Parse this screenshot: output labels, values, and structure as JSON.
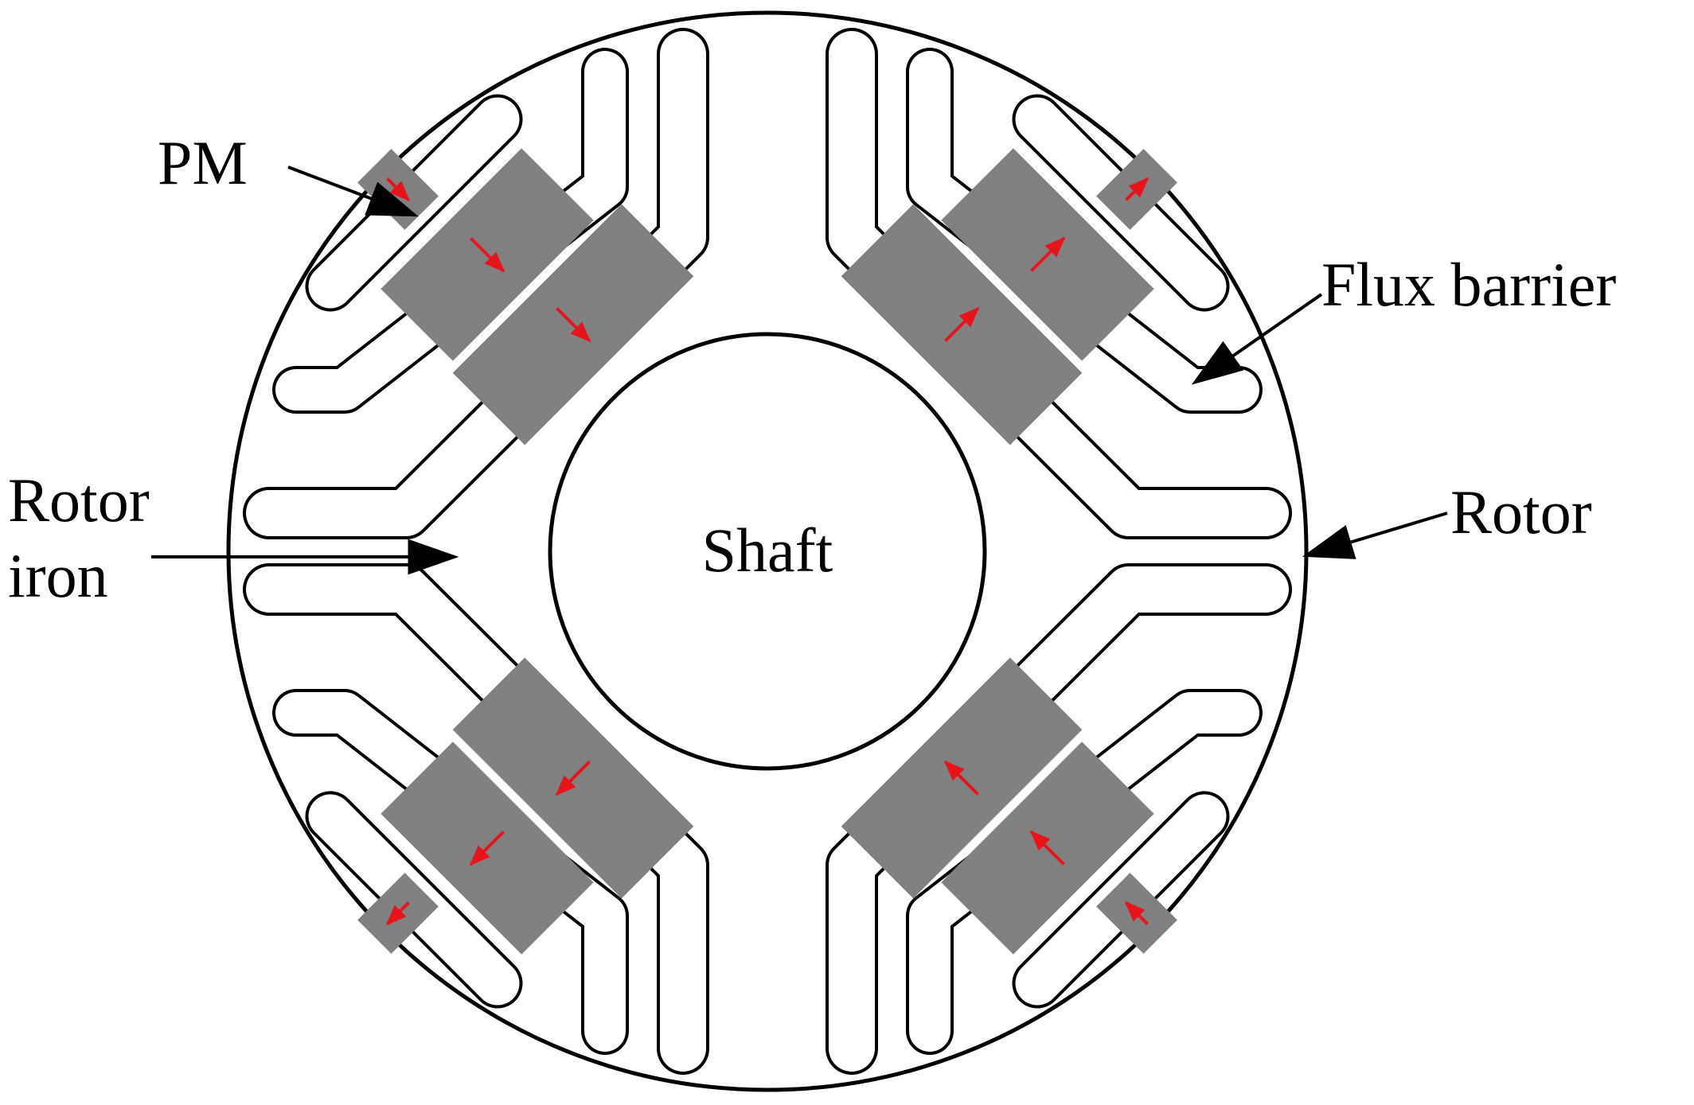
{
  "labels": {
    "pm": "PM",
    "flux_barrier": "Flux barrier",
    "rotor_iron_line1": "Rotor",
    "rotor_iron_line2": "iron",
    "rotor": "Rotor",
    "shaft": "Shaft"
  },
  "colors": {
    "outline": "#000000",
    "magnet": "#808080",
    "magnetization_arrow": "#e8141c",
    "background": "#ffffff"
  },
  "magnetization": {
    "top-left": "inward",
    "top-right": "outward",
    "bottom-left": "outward",
    "bottom-right": "inward"
  }
}
